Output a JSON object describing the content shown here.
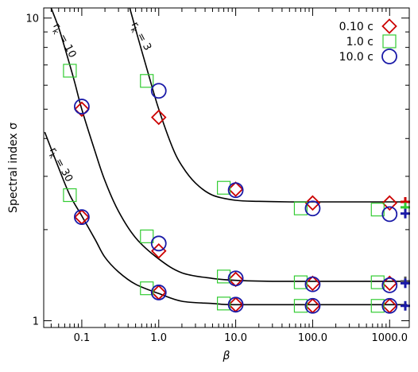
{
  "chart_data": {
    "type": "scatter",
    "title": "",
    "xlabel": "β",
    "ylabel": "Spectral index   σ",
    "xscale": "log",
    "yscale": "log",
    "xlim": [
      0.032,
      1800
    ],
    "ylim": [
      0.95,
      10.8
    ],
    "x_ticks": [
      0.1,
      1,
      10,
      100,
      1000
    ],
    "x_tick_labels": [
      "0.1",
      "1.0",
      "10.0",
      "100.0",
      "1000.0"
    ],
    "y_ticks": [
      1,
      10
    ],
    "y_tick_labels": [
      "1",
      "10"
    ],
    "legend_position": "top-right",
    "series": [
      {
        "name": "0.10 c",
        "marker": "diamond",
        "color": "#cc0000",
        "points": [
          {
            "x": 0.1,
            "y": 5.0
          },
          {
            "x": 1.0,
            "y": 4.7
          },
          {
            "x": 10.0,
            "y": 2.72
          },
          {
            "x": 100.0,
            "y": 2.45
          },
          {
            "x": 1000.0,
            "y": 2.45
          },
          {
            "x": 0.1,
            "y": 2.2
          },
          {
            "x": 1.0,
            "y": 1.7
          },
          {
            "x": 10.0,
            "y": 1.37
          },
          {
            "x": 100.0,
            "y": 1.33
          },
          {
            "x": 1000.0,
            "y": 1.33
          },
          {
            "x": 1.0,
            "y": 1.24
          },
          {
            "x": 10.0,
            "y": 1.13
          },
          {
            "x": 100.0,
            "y": 1.12
          },
          {
            "x": 1000.0,
            "y": 1.12
          }
        ]
      },
      {
        "name": "1.0 c",
        "marker": "square",
        "color": "#33cc33",
        "points": [
          {
            "x": 0.07,
            "y": 6.7
          },
          {
            "x": 0.7,
            "y": 6.2
          },
          {
            "x": 7.0,
            "y": 2.75
          },
          {
            "x": 70.0,
            "y": 2.35
          },
          {
            "x": 700.0,
            "y": 2.33
          },
          {
            "x": 0.07,
            "y": 2.6
          },
          {
            "x": 0.7,
            "y": 1.9
          },
          {
            "x": 7.0,
            "y": 1.4
          },
          {
            "x": 70.0,
            "y": 1.34
          },
          {
            "x": 700.0,
            "y": 1.34
          },
          {
            "x": 0.7,
            "y": 1.28
          },
          {
            "x": 7.0,
            "y": 1.14
          },
          {
            "x": 70.0,
            "y": 1.12
          },
          {
            "x": 700.0,
            "y": 1.12
          }
        ]
      },
      {
        "name": "10.0 c",
        "marker": "circle",
        "color": "#1a1aa8",
        "points": [
          {
            "x": 0.1,
            "y": 5.1
          },
          {
            "x": 1.0,
            "y": 5.75
          },
          {
            "x": 10.0,
            "y": 2.7
          },
          {
            "x": 100.0,
            "y": 2.35
          },
          {
            "x": 1000.0,
            "y": 2.25
          },
          {
            "x": 0.1,
            "y": 2.2
          },
          {
            "x": 1.0,
            "y": 1.8
          },
          {
            "x": 10.0,
            "y": 1.38
          },
          {
            "x": 100.0,
            "y": 1.32
          },
          {
            "x": 1000.0,
            "y": 1.31
          },
          {
            "x": 1.0,
            "y": 1.24
          },
          {
            "x": 10.0,
            "y": 1.13
          },
          {
            "x": 100.0,
            "y": 1.12
          },
          {
            "x": 1000.0,
            "y": 1.12
          }
        ]
      }
    ],
    "curves": [
      {
        "label": "r_k = 3",
        "asymptote": 2.47,
        "x": [
          0.42,
          0.5,
          0.6,
          0.75,
          1.0,
          1.5,
          2.0,
          3.0,
          5.0,
          10.0,
          20.0,
          50.0,
          100.0,
          1000.0,
          1700.0
        ],
        "y": [
          10.8,
          9.2,
          7.8,
          6.4,
          5.0,
          3.75,
          3.25,
          2.85,
          2.6,
          2.5,
          2.48,
          2.47,
          2.47,
          2.47,
          2.47
        ]
      },
      {
        "label": "r_k = 10",
        "asymptote": 1.35,
        "x": [
          0.04,
          0.05,
          0.06,
          0.08,
          0.1,
          0.15,
          0.2,
          0.3,
          0.5,
          1.0,
          2.0,
          5.0,
          10.0,
          30.0,
          100.0,
          1000.0,
          1700.0
        ],
        "y": [
          10.8,
          9.3,
          8.0,
          6.2,
          5.0,
          3.6,
          2.9,
          2.3,
          1.88,
          1.6,
          1.44,
          1.38,
          1.36,
          1.35,
          1.35,
          1.35,
          1.35
        ]
      },
      {
        "label": "r_k = 30",
        "asymptote": 1.13,
        "x": [
          0.033,
          0.05,
          0.07,
          0.1,
          0.15,
          0.2,
          0.3,
          0.5,
          1.0,
          2.0,
          5.0,
          10.0,
          100.0,
          1000.0,
          1700.0
        ],
        "y": [
          4.2,
          3.2,
          2.6,
          2.22,
          1.85,
          1.62,
          1.45,
          1.32,
          1.23,
          1.16,
          1.14,
          1.13,
          1.13,
          1.13,
          1.13
        ]
      }
    ],
    "asymptote_markers": [
      {
        "color": "#cc0000",
        "y": 2.47
      },
      {
        "color": "#33cc33",
        "y": 2.37
      },
      {
        "color": "#1a1aa8",
        "y": 2.26
      },
      {
        "color": "#555555",
        "y": 1.35
      },
      {
        "color": "#1a1aa8",
        "y": 1.33
      },
      {
        "color": "#1a1aa8",
        "y": 1.12
      }
    ]
  }
}
